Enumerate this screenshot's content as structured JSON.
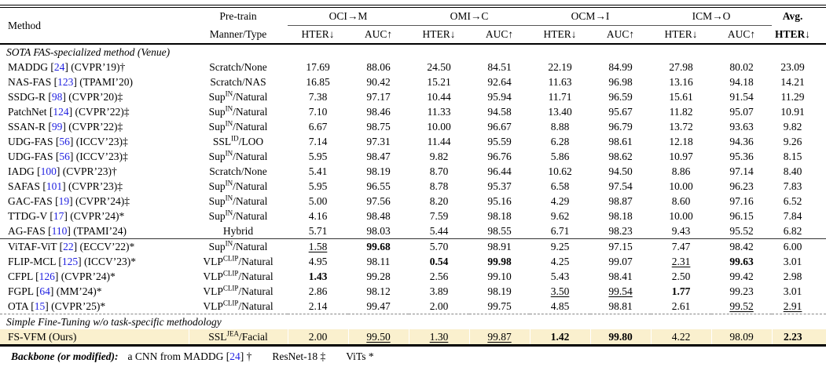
{
  "colors": {
    "highlight": "#faf0ce",
    "cite": "#1f1fe0"
  },
  "table": {
    "header": {
      "method": "Method",
      "pretrain_line1": "Pre-train",
      "pretrain_line2": "Manner/Type",
      "groups": [
        "OCI→M",
        "OMI→C",
        "OCM→I",
        "ICM→O"
      ],
      "sub_hter": "HTER↓",
      "sub_auc": "AUC↑",
      "avg_line1": "Avg.",
      "avg_line2": "HTER↓"
    },
    "rows": [
      {
        "type": "section",
        "label": "SOTA FAS-specialized method (Venue)"
      },
      {
        "type": "data",
        "method": {
          "name": "MADDG",
          "cite": "24",
          "venue": "(CVPR’19)",
          "marker": "†"
        },
        "pretrain": {
          "base": "Scratch",
          "sup": "",
          "rest": "/None"
        },
        "cells": [
          {
            "v": "17.69"
          },
          {
            "v": "88.06"
          },
          {
            "v": "24.50"
          },
          {
            "v": "84.51"
          },
          {
            "v": "22.19"
          },
          {
            "v": "84.99"
          },
          {
            "v": "27.98"
          },
          {
            "v": "80.02"
          },
          {
            "v": "23.09"
          }
        ]
      },
      {
        "type": "data",
        "method": {
          "name": "NAS-FAS",
          "cite": "123",
          "venue": "(TPAMI’20)",
          "marker": ""
        },
        "pretrain": {
          "base": "Scratch",
          "sup": "",
          "rest": "/NAS"
        },
        "cells": [
          {
            "v": "16.85"
          },
          {
            "v": "90.42"
          },
          {
            "v": "15.21"
          },
          {
            "v": "92.64"
          },
          {
            "v": "11.63"
          },
          {
            "v": "96.98"
          },
          {
            "v": "13.16"
          },
          {
            "v": "94.18"
          },
          {
            "v": "14.21"
          }
        ]
      },
      {
        "type": "data",
        "method": {
          "name": "SSDG-R",
          "cite": "98",
          "venue": "(CVPR’20)",
          "marker": "‡"
        },
        "pretrain": {
          "base": "Sup",
          "sup": "IN",
          "rest": "/Natural"
        },
        "cells": [
          {
            "v": "7.38"
          },
          {
            "v": "97.17"
          },
          {
            "v": "10.44"
          },
          {
            "v": "95.94"
          },
          {
            "v": "11.71"
          },
          {
            "v": "96.59"
          },
          {
            "v": "15.61"
          },
          {
            "v": "91.54"
          },
          {
            "v": "11.29"
          }
        ]
      },
      {
        "type": "data",
        "method": {
          "name": "PatchNet",
          "cite": "124",
          "venue": "(CVPR’22)",
          "marker": "‡"
        },
        "pretrain": {
          "base": "Sup",
          "sup": "IN",
          "rest": "/Natural"
        },
        "cells": [
          {
            "v": "7.10"
          },
          {
            "v": "98.46"
          },
          {
            "v": "11.33"
          },
          {
            "v": "94.58"
          },
          {
            "v": "13.40"
          },
          {
            "v": "95.67"
          },
          {
            "v": "11.82"
          },
          {
            "v": "95.07"
          },
          {
            "v": "10.91"
          }
        ]
      },
      {
        "type": "data",
        "method": {
          "name": "SSAN-R",
          "cite": "99",
          "venue": "(CVPR’22)",
          "marker": "‡"
        },
        "pretrain": {
          "base": "Sup",
          "sup": "IN",
          "rest": "/Natural"
        },
        "cells": [
          {
            "v": "6.67"
          },
          {
            "v": "98.75"
          },
          {
            "v": "10.00"
          },
          {
            "v": "96.67"
          },
          {
            "v": "8.88"
          },
          {
            "v": "96.79"
          },
          {
            "v": "13.72"
          },
          {
            "v": "93.63"
          },
          {
            "v": "9.82"
          }
        ]
      },
      {
        "type": "data",
        "method": {
          "name": "UDG-FAS",
          "cite": "56",
          "venue": "(ICCV’23)",
          "marker": "‡"
        },
        "pretrain": {
          "base": "SSL",
          "sup": "ID",
          "rest": "/LOO"
        },
        "cells": [
          {
            "v": "7.14"
          },
          {
            "v": "97.31"
          },
          {
            "v": "11.44"
          },
          {
            "v": "95.59"
          },
          {
            "v": "6.28"
          },
          {
            "v": "98.61"
          },
          {
            "v": "12.18"
          },
          {
            "v": "94.36"
          },
          {
            "v": "9.26"
          }
        ]
      },
      {
        "type": "data",
        "method": {
          "name": "UDG-FAS",
          "cite": "56",
          "venue": "(ICCV’23)",
          "marker": "‡"
        },
        "pretrain": {
          "base": "Sup",
          "sup": "IN",
          "rest": "/Natural"
        },
        "cells": [
          {
            "v": "5.95"
          },
          {
            "v": "98.47"
          },
          {
            "v": "9.82"
          },
          {
            "v": "96.76"
          },
          {
            "v": "5.86"
          },
          {
            "v": "98.62"
          },
          {
            "v": "10.97"
          },
          {
            "v": "95.36"
          },
          {
            "v": "8.15"
          }
        ]
      },
      {
        "type": "data",
        "method": {
          "name": "IADG",
          "cite": "100",
          "venue": "(CVPR’23)",
          "marker": "†"
        },
        "pretrain": {
          "base": "Scratch",
          "sup": "",
          "rest": "/None"
        },
        "cells": [
          {
            "v": "5.41"
          },
          {
            "v": "98.19"
          },
          {
            "v": "8.70"
          },
          {
            "v": "96.44"
          },
          {
            "v": "10.62"
          },
          {
            "v": "94.50"
          },
          {
            "v": "8.86"
          },
          {
            "v": "97.14"
          },
          {
            "v": "8.40"
          }
        ]
      },
      {
        "type": "data",
        "method": {
          "name": "SAFAS",
          "cite": "101",
          "venue": "(CVPR’23)",
          "marker": "‡"
        },
        "pretrain": {
          "base": "Sup",
          "sup": "IN",
          "rest": "/Natural"
        },
        "cells": [
          {
            "v": "5.95"
          },
          {
            "v": "96.55"
          },
          {
            "v": "8.78"
          },
          {
            "v": "95.37"
          },
          {
            "v": "6.58"
          },
          {
            "v": "97.54"
          },
          {
            "v": "10.00"
          },
          {
            "v": "96.23"
          },
          {
            "v": "7.83"
          }
        ]
      },
      {
        "type": "data",
        "method": {
          "name": "GAC-FAS",
          "cite": "19",
          "venue": "(CVPR’24)",
          "marker": "‡"
        },
        "pretrain": {
          "base": "Sup",
          "sup": "IN",
          "rest": "/Natural"
        },
        "cells": [
          {
            "v": "5.00"
          },
          {
            "v": "97.56"
          },
          {
            "v": "8.20"
          },
          {
            "v": "95.16"
          },
          {
            "v": "4.29"
          },
          {
            "v": "98.87"
          },
          {
            "v": "8.60"
          },
          {
            "v": "97.16"
          },
          {
            "v": "6.52"
          }
        ]
      },
      {
        "type": "data",
        "method": {
          "name": "TTDG-V",
          "cite": "17",
          "venue": "(CVPR’24)",
          "marker": "*"
        },
        "pretrain": {
          "base": "Sup",
          "sup": "IN",
          "rest": "/Natural"
        },
        "cells": [
          {
            "v": "4.16"
          },
          {
            "v": "98.48"
          },
          {
            "v": "7.59"
          },
          {
            "v": "98.18"
          },
          {
            "v": "9.62"
          },
          {
            "v": "98.18"
          },
          {
            "v": "10.00"
          },
          {
            "v": "96.15"
          },
          {
            "v": "7.84"
          }
        ]
      },
      {
        "type": "data",
        "method": {
          "name": "AG-FAS",
          "cite": "110",
          "venue": "(TPAMI’24)",
          "marker": ""
        },
        "pretrain": {
          "base": "Hybrid",
          "sup": "",
          "rest": ""
        },
        "cells": [
          {
            "v": "5.71"
          },
          {
            "v": "98.03"
          },
          {
            "v": "5.44"
          },
          {
            "v": "98.55"
          },
          {
            "v": "6.71"
          },
          {
            "v": "98.23"
          },
          {
            "v": "9.43"
          },
          {
            "v": "95.52"
          },
          {
            "v": "6.82"
          }
        ]
      },
      {
        "type": "data",
        "rule_above": true,
        "method": {
          "name": "ViTAF-ViT",
          "cite": "22",
          "venue": "(ECCV’22)",
          "marker": "*"
        },
        "pretrain": {
          "base": "Sup",
          "sup": "IN",
          "rest": "/Natural"
        },
        "cells": [
          {
            "v": "1.58",
            "u": 1
          },
          {
            "v": "99.68",
            "b": 1
          },
          {
            "v": "5.70"
          },
          {
            "v": "98.91"
          },
          {
            "v": "9.25"
          },
          {
            "v": "97.15"
          },
          {
            "v": "7.47"
          },
          {
            "v": "98.42"
          },
          {
            "v": "6.00"
          }
        ]
      },
      {
        "type": "data",
        "method": {
          "name": "FLIP-MCL",
          "cite": "125",
          "venue": "(ICCV’23)",
          "marker": "*"
        },
        "pretrain": {
          "base": "VLP",
          "sup": "CLIP",
          "rest": "/Natural"
        },
        "cells": [
          {
            "v": "4.95"
          },
          {
            "v": "98.11"
          },
          {
            "v": "0.54",
            "b": 1
          },
          {
            "v": "99.98",
            "b": 1
          },
          {
            "v": "4.25"
          },
          {
            "v": "99.07"
          },
          {
            "v": "2.31",
            "u": 1
          },
          {
            "v": "99.63",
            "b": 1
          },
          {
            "v": "3.01"
          }
        ]
      },
      {
        "type": "data",
        "method": {
          "name": "CFPL",
          "cite": "126",
          "venue": "(CVPR’24)",
          "marker": "*"
        },
        "pretrain": {
          "base": "VLP",
          "sup": "CLIP",
          "rest": "/Natural"
        },
        "cells": [
          {
            "v": "1.43",
            "b": 1
          },
          {
            "v": "99.28"
          },
          {
            "v": "2.56"
          },
          {
            "v": "99.10"
          },
          {
            "v": "5.43"
          },
          {
            "v": "98.41"
          },
          {
            "v": "2.50"
          },
          {
            "v": "99.42"
          },
          {
            "v": "2.98"
          }
        ]
      },
      {
        "type": "data",
        "method": {
          "name": "FGPL",
          "cite": "64",
          "venue": "(MM’24)",
          "marker": "*"
        },
        "pretrain": {
          "base": "VLP",
          "sup": "CLIP",
          "rest": "/Natural"
        },
        "cells": [
          {
            "v": "2.86"
          },
          {
            "v": "98.12"
          },
          {
            "v": "3.89"
          },
          {
            "v": "98.19"
          },
          {
            "v": "3.50",
            "u": 1
          },
          {
            "v": "99.54",
            "u": 1
          },
          {
            "v": "1.77",
            "b": 1
          },
          {
            "v": "99.23"
          },
          {
            "v": "3.01"
          }
        ]
      },
      {
        "type": "data",
        "method": {
          "name": "OTA",
          "cite": "15",
          "venue": "(CVPR’25)",
          "marker": "*"
        },
        "pretrain": {
          "base": "VLP",
          "sup": "CLIP",
          "rest": "/Natural"
        },
        "cells": [
          {
            "v": "2.14"
          },
          {
            "v": "99.47"
          },
          {
            "v": "2.00"
          },
          {
            "v": "99.75"
          },
          {
            "v": "4.85"
          },
          {
            "v": "98.81"
          },
          {
            "v": "2.61"
          },
          {
            "v": "99.52",
            "u": 1
          },
          {
            "v": "2.91",
            "u": 1
          }
        ]
      },
      {
        "type": "section",
        "dashed_above": true,
        "label": "Simple Fine-Tuning w/o task-specific methodology"
      },
      {
        "type": "data",
        "highlight": true,
        "thick_below": true,
        "method": {
          "name": "FS-VFM (Ours)",
          "cite": "",
          "venue": "",
          "marker": ""
        },
        "pretrain": {
          "base": "SSL",
          "sup": "JEA",
          "rest": "/Facial"
        },
        "cells": [
          {
            "v": "2.00"
          },
          {
            "v": "99.50",
            "u": 1
          },
          {
            "v": "1.30",
            "u": 1
          },
          {
            "v": "99.87",
            "u": 1
          },
          {
            "v": "1.42",
            "b": 1
          },
          {
            "v": "99.80",
            "b": 1
          },
          {
            "v": "4.22"
          },
          {
            "v": "98.09"
          },
          {
            "v": "2.23",
            "b": 1
          }
        ]
      }
    ]
  },
  "footer": {
    "label": "Backbone (or modified):",
    "items": [
      {
        "text": "a CNN from MADDG",
        "cite": "24",
        "marker": "†"
      },
      {
        "text": "ResNet-18",
        "cite": "",
        "marker": "‡"
      },
      {
        "text": "ViTs",
        "cite": "",
        "marker": "*"
      }
    ]
  }
}
